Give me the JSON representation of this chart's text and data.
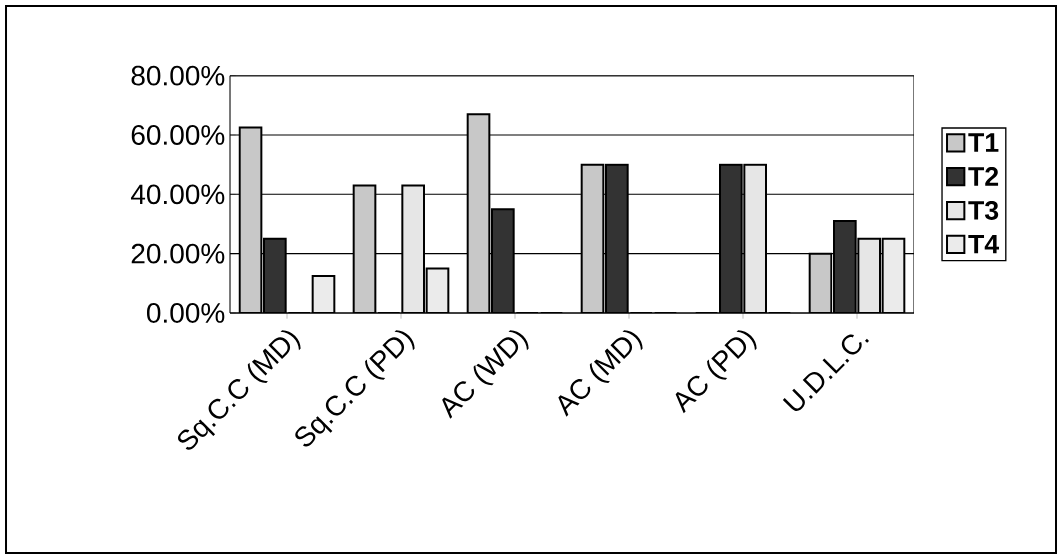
{
  "chart_data": {
    "type": "bar",
    "categories": [
      "Sq.C.C (MD)",
      "Sq.C.C (PD)",
      "AC (WD)",
      "AC (MD)",
      "AC (PD)",
      "U.D.L.C."
    ],
    "series": [
      {
        "name": "T1",
        "color": "#c8c8c8",
        "values": [
          62.5,
          43,
          67,
          50,
          0,
          20
        ]
      },
      {
        "name": "T2",
        "color": "#333333",
        "values": [
          25,
          0,
          35,
          50,
          50,
          31
        ]
      },
      {
        "name": "T3",
        "color": "#e6e6e6",
        "values": [
          0,
          43,
          0,
          0,
          50,
          25
        ]
      },
      {
        "name": "T4",
        "color": "#ebebeb",
        "values": [
          12.5,
          15,
          0,
          0,
          0,
          25
        ]
      }
    ],
    "ylim": [
      0,
      80
    ],
    "yticks": [
      {
        "value": 0,
        "label": "0.00%"
      },
      {
        "value": 20,
        "label": "20.00%"
      },
      {
        "value": 40,
        "label": "40.00%"
      },
      {
        "value": 60,
        "label": "60.00%"
      },
      {
        "value": 80,
        "label": "80.00%"
      }
    ],
    "grid": "y",
    "legend": "right"
  }
}
